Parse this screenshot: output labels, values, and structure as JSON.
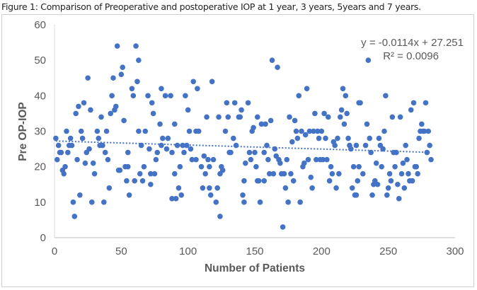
{
  "caption": "Figure 1: Comparison of Preoperative and postoperative IOP at 1 year, 3 years, 5years and 7 years.",
  "chart_data": {
    "type": "scatter",
    "title": "",
    "xlabel": "Number of Patients",
    "ylabel": "Pre OP-IOP",
    "xlim": [
      0,
      300
    ],
    "ylim": [
      0,
      60
    ],
    "xticks": [
      0,
      50,
      100,
      150,
      200,
      250,
      300
    ],
    "yticks": [
      0,
      10,
      20,
      30,
      40,
      50,
      60
    ],
    "grid": false,
    "legend": "none",
    "marker_color": "#4472C4",
    "trendline": {
      "type": "linear",
      "style": "dotted",
      "slope": -0.0114,
      "intercept": 27.251,
      "equation_label": "y = -0.0114x + 27.251",
      "r2_label": "R² = 0.0096"
    },
    "points": [
      [
        1,
        28
      ],
      [
        2,
        22
      ],
      [
        3,
        26
      ],
      [
        4,
        24
      ],
      [
        5,
        24
      ],
      [
        6,
        19
      ],
      [
        7,
        18
      ],
      [
        8,
        20
      ],
      [
        9,
        30
      ],
      [
        10,
        24
      ],
      [
        11,
        26
      ],
      [
        12,
        28
      ],
      [
        13,
        26
      ],
      [
        14,
        10
      ],
      [
        15,
        6
      ],
      [
        16,
        35
      ],
      [
        17,
        22
      ],
      [
        18,
        37
      ],
      [
        19,
        12
      ],
      [
        20,
        30
      ],
      [
        21,
        28
      ],
      [
        22,
        38
      ],
      [
        23,
        21
      ],
      [
        24,
        24
      ],
      [
        25,
        45
      ],
      [
        26,
        25
      ],
      [
        27,
        36
      ],
      [
        28,
        10
      ],
      [
        29,
        21
      ],
      [
        30,
        18
      ],
      [
        32,
        30
      ],
      [
        33,
        28
      ],
      [
        34,
        26
      ],
      [
        35,
        34
      ],
      [
        36,
        26
      ],
      [
        37,
        10
      ],
      [
        38,
        24
      ],
      [
        39,
        30
      ],
      [
        40,
        22
      ],
      [
        41,
        14
      ],
      [
        42,
        35
      ],
      [
        43,
        40
      ],
      [
        44,
        45
      ],
      [
        45,
        36
      ],
      [
        46,
        37
      ],
      [
        47,
        54
      ],
      [
        48,
        19
      ],
      [
        49,
        19
      ],
      [
        50,
        46
      ],
      [
        51,
        48
      ],
      [
        52,
        33
      ],
      [
        53,
        20
      ],
      [
        54,
        16
      ],
      [
        55,
        20
      ],
      [
        55,
        24
      ],
      [
        56,
        12
      ],
      [
        58,
        42
      ],
      [
        59,
        40
      ],
      [
        60,
        16
      ],
      [
        61,
        54
      ],
      [
        62,
        44
      ],
      [
        63,
        30
      ],
      [
        63,
        50
      ],
      [
        64,
        18
      ],
      [
        65,
        26
      ],
      [
        66,
        16
      ],
      [
        67,
        20
      ],
      [
        68,
        30
      ],
      [
        70,
        40
      ],
      [
        71,
        25
      ],
      [
        72,
        15
      ],
      [
        72,
        18
      ],
      [
        73,
        38
      ],
      [
        74,
        35
      ],
      [
        75,
        18
      ],
      [
        76,
        22
      ],
      [
        77,
        24
      ],
      [
        79,
        32
      ],
      [
        80,
        42
      ],
      [
        80,
        26
      ],
      [
        81,
        28
      ],
      [
        83,
        40
      ],
      [
        84,
        25
      ],
      [
        85,
        28
      ],
      [
        87,
        40
      ],
      [
        88,
        24
      ],
      [
        88,
        11
      ],
      [
        90,
        18
      ],
      [
        90,
        32
      ],
      [
        91,
        11
      ],
      [
        92,
        26
      ],
      [
        93,
        14
      ],
      [
        94,
        20
      ],
      [
        95,
        12
      ],
      [
        96,
        26
      ],
      [
        97,
        24
      ],
      [
        98,
        40
      ],
      [
        99,
        26
      ],
      [
        100,
        36
      ],
      [
        101,
        30
      ],
      [
        102,
        25
      ],
      [
        103,
        22
      ],
      [
        104,
        44
      ],
      [
        106,
        30
      ],
      [
        106,
        22
      ],
      [
        107,
        42
      ],
      [
        108,
        30
      ],
      [
        110,
        20
      ],
      [
        111,
        14
      ],
      [
        112,
        23
      ],
      [
        113,
        18
      ],
      [
        114,
        34
      ],
      [
        115,
        22
      ],
      [
        116,
        20
      ],
      [
        116,
        14
      ],
      [
        117,
        12
      ],
      [
        118,
        44
      ],
      [
        119,
        22
      ],
      [
        121,
        10
      ],
      [
        122,
        14
      ],
      [
        123,
        34
      ],
      [
        124,
        18
      ],
      [
        124,
        6
      ],
      [
        125,
        20
      ],
      [
        126,
        19
      ],
      [
        128,
        30
      ],
      [
        129,
        38
      ],
      [
        130,
        34
      ],
      [
        131,
        24
      ],
      [
        132,
        24
      ],
      [
        134,
        28
      ],
      [
        135,
        38
      ],
      [
        136,
        26
      ],
      [
        138,
        34
      ],
      [
        139,
        34
      ],
      [
        140,
        36
      ],
      [
        141,
        12
      ],
      [
        142,
        16
      ],
      [
        142,
        10
      ],
      [
        143,
        21
      ],
      [
        145,
        38
      ],
      [
        146,
        24
      ],
      [
        147,
        22
      ],
      [
        148,
        30
      ],
      [
        149,
        31
      ],
      [
        150,
        24
      ],
      [
        151,
        20
      ],
      [
        152,
        34
      ],
      [
        152,
        16
      ],
      [
        153,
        16
      ],
      [
        154,
        10
      ],
      [
        155,
        32
      ],
      [
        157,
        24
      ],
      [
        157,
        16
      ],
      [
        158,
        32
      ],
      [
        159,
        26
      ],
      [
        160,
        22
      ],
      [
        161,
        18
      ],
      [
        162,
        33
      ],
      [
        163,
        50
      ],
      [
        164,
        18
      ],
      [
        165,
        25
      ],
      [
        166,
        23
      ],
      [
        167,
        48
      ],
      [
        168,
        22
      ],
      [
        169,
        21
      ],
      [
        170,
        18
      ],
      [
        171,
        3
      ],
      [
        172,
        18
      ],
      [
        173,
        14
      ],
      [
        174,
        22
      ],
      [
        175,
        10
      ],
      [
        176,
        34
      ],
      [
        177,
        18
      ],
      [
        178,
        27
      ],
      [
        179,
        16
      ],
      [
        180,
        33
      ],
      [
        181,
        30
      ],
      [
        182,
        28
      ],
      [
        183,
        40
      ],
      [
        184,
        10
      ],
      [
        185,
        30
      ],
      [
        186,
        20
      ],
      [
        187,
        21
      ],
      [
        188,
        29
      ],
      [
        189,
        42
      ],
      [
        190,
        22
      ],
      [
        191,
        30
      ],
      [
        192,
        17
      ],
      [
        193,
        14
      ],
      [
        194,
        30
      ],
      [
        195,
        35
      ],
      [
        196,
        22
      ],
      [
        197,
        30
      ],
      [
        198,
        28
      ],
      [
        199,
        22
      ],
      [
        200,
        30
      ],
      [
        201,
        22
      ],
      [
        202,
        35
      ],
      [
        203,
        28
      ],
      [
        204,
        22
      ],
      [
        205,
        34
      ],
      [
        206,
        16
      ],
      [
        207,
        20
      ],
      [
        208,
        18
      ],
      [
        209,
        27
      ],
      [
        210,
        26
      ],
      [
        211,
        14
      ],
      [
        212,
        28
      ],
      [
        213,
        18
      ],
      [
        214,
        34
      ],
      [
        215,
        36
      ],
      [
        216,
        42
      ],
      [
        217,
        32
      ],
      [
        218,
        40
      ],
      [
        219,
        35
      ],
      [
        220,
        28
      ],
      [
        221,
        26
      ],
      [
        222,
        25
      ],
      [
        223,
        14
      ],
      [
        224,
        20
      ],
      [
        225,
        12
      ],
      [
        226,
        26
      ],
      [
        226,
        12
      ],
      [
        227,
        16
      ],
      [
        228,
        20
      ],
      [
        228,
        38
      ],
      [
        229,
        38
      ],
      [
        231,
        18
      ],
      [
        233,
        26
      ],
      [
        234,
        32
      ],
      [
        235,
        50
      ],
      [
        236,
        28
      ],
      [
        237,
        24
      ],
      [
        238,
        12
      ],
      [
        239,
        15
      ],
      [
        240,
        16
      ],
      [
        241,
        21
      ],
      [
        242,
        15
      ],
      [
        243,
        28
      ],
      [
        244,
        26
      ],
      [
        245,
        20
      ],
      [
        246,
        25
      ],
      [
        247,
        30
      ],
      [
        248,
        40
      ],
      [
        249,
        12
      ],
      [
        250,
        14
      ],
      [
        251,
        18
      ],
      [
        252,
        16
      ],
      [
        253,
        34
      ],
      [
        254,
        24
      ],
      [
        255,
        20
      ],
      [
        256,
        24
      ],
      [
        257,
        15
      ],
      [
        258,
        11
      ],
      [
        259,
        34
      ],
      [
        260,
        18
      ],
      [
        261,
        21
      ],
      [
        262,
        14
      ],
      [
        263,
        26
      ],
      [
        264,
        22
      ],
      [
        265,
        18
      ],
      [
        266,
        16
      ],
      [
        267,
        36
      ],
      [
        268,
        16
      ],
      [
        269,
        38
      ],
      [
        270,
        20
      ],
      [
        271,
        20
      ],
      [
        272,
        18
      ],
      [
        273,
        28
      ],
      [
        274,
        30
      ],
      [
        275,
        32
      ],
      [
        276,
        30
      ],
      [
        277,
        30
      ],
      [
        278,
        38
      ],
      [
        279,
        24
      ],
      [
        280,
        30
      ],
      [
        281,
        26
      ],
      [
        282,
        22
      ]
    ]
  }
}
